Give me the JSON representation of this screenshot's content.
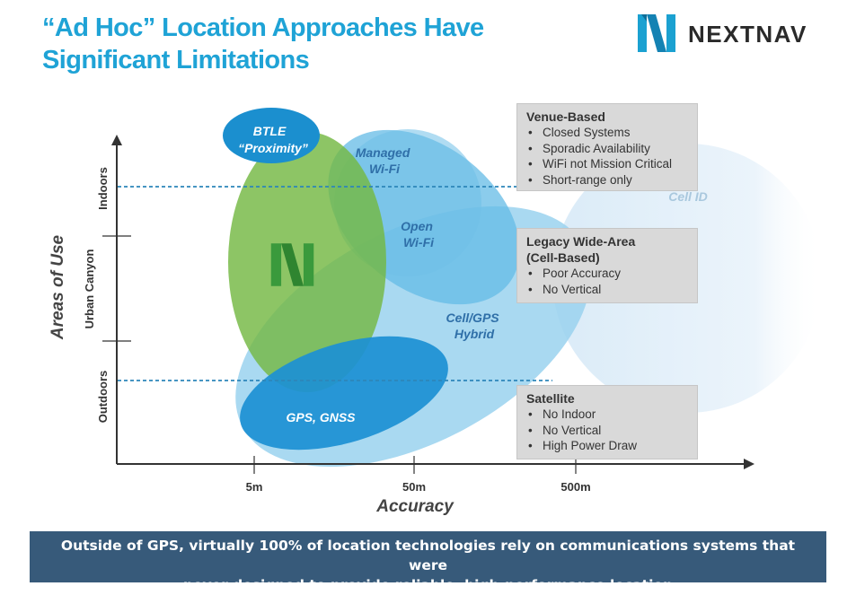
{
  "title": {
    "line1": "“Ad Hoc” Location Approaches Have",
    "line2": "Significant Limitations"
  },
  "logo": {
    "text": "NEXTNAV",
    "icon": "nextnav-n-logo",
    "color": "#1ba1d1"
  },
  "axes": {
    "x_label": "Accuracy",
    "y_label": "Areas of Use",
    "x_ticks": [
      "5m",
      "50m",
      "500m"
    ],
    "y_ticks": [
      "Indoors",
      "Urban Canyon",
      "Outdoors"
    ]
  },
  "regions": {
    "btle": {
      "label_line1": "BTLE",
      "label_line2": "“Proximity”",
      "color": "#1b8fcf"
    },
    "managed_wifi": {
      "label_line1": "Managed",
      "label_line2": "Wi-Fi",
      "color": "#2f6fa8"
    },
    "open_wifi": {
      "label_line1": "Open",
      "label_line2": "Wi-Fi",
      "color": "#5ab6e2"
    },
    "cell_gps": {
      "label_line1": "Cell/GPS",
      "label_line2": "Hybrid",
      "color": "#8fcdee"
    },
    "gps_gnss": {
      "label": "GPS, GNSS",
      "color": "#1c90d4"
    },
    "cell_id": {
      "label": "Cell ID",
      "color": "#d4e8f6"
    },
    "nextnav": {
      "icon": "nextnav-n-logo",
      "color": "#74b843"
    }
  },
  "info_boxes": {
    "venue": {
      "title": "Venue-Based",
      "items": [
        "Closed Systems",
        "Sporadic Availability",
        "WiFi not Mission Critical",
        "Short-range only"
      ]
    },
    "legacy": {
      "title_line1": "Legacy Wide-Area",
      "title_line2": "(Cell-Based)",
      "items": [
        "Poor Accuracy",
        "No Vertical"
      ]
    },
    "satellite": {
      "title": "Satellite",
      "items": [
        "No Indoor",
        "No Vertical",
        "High Power Draw"
      ]
    }
  },
  "footer": {
    "line1": "Outside of GPS, virtually 100% of location technologies rely on communications systems that were",
    "line2": "never designed to provide reliable, high-performance location"
  }
}
